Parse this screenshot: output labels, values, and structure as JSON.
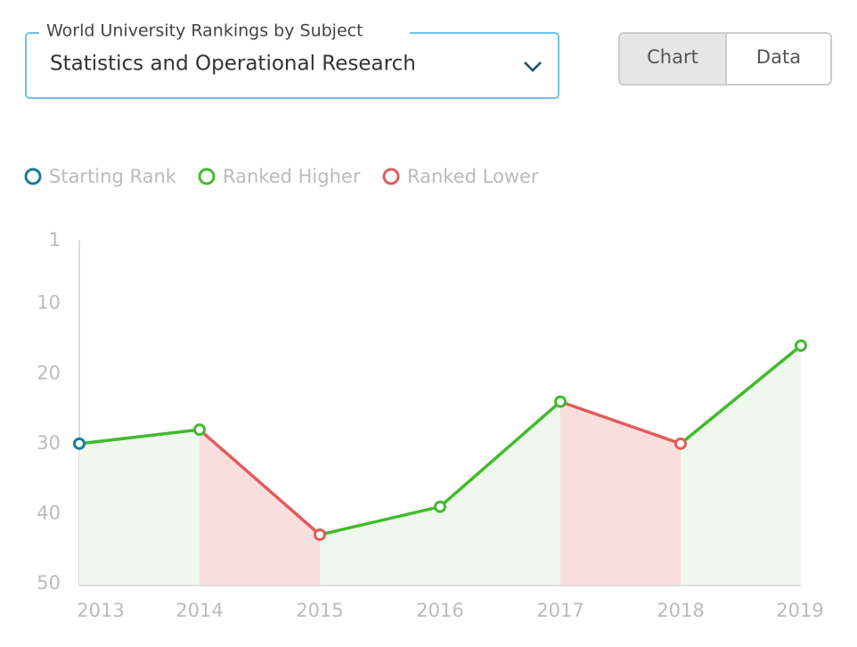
{
  "dropdown": {
    "label": "World University Rankings by Subject",
    "value": "Statistics and Operational Research"
  },
  "toggle": [
    "Chart",
    "Data"
  ],
  "chart_data": {
    "type": "line",
    "legend": [
      {
        "name": "Starting Rank",
        "color": "#167d9e"
      },
      {
        "name": "Ranked Higher",
        "color": "#43b92f"
      },
      {
        "name": "Ranked Lower",
        "color": "#e35b5b"
      }
    ],
    "categories": [
      "2013",
      "2014",
      "2015",
      "2016",
      "2017",
      "2018",
      "2019"
    ],
    "values": [
      30,
      28,
      43,
      39,
      24,
      30,
      16
    ],
    "ylim": [
      50,
      1
    ],
    "yticks": [
      1,
      10,
      20,
      30,
      40,
      50
    ]
  }
}
